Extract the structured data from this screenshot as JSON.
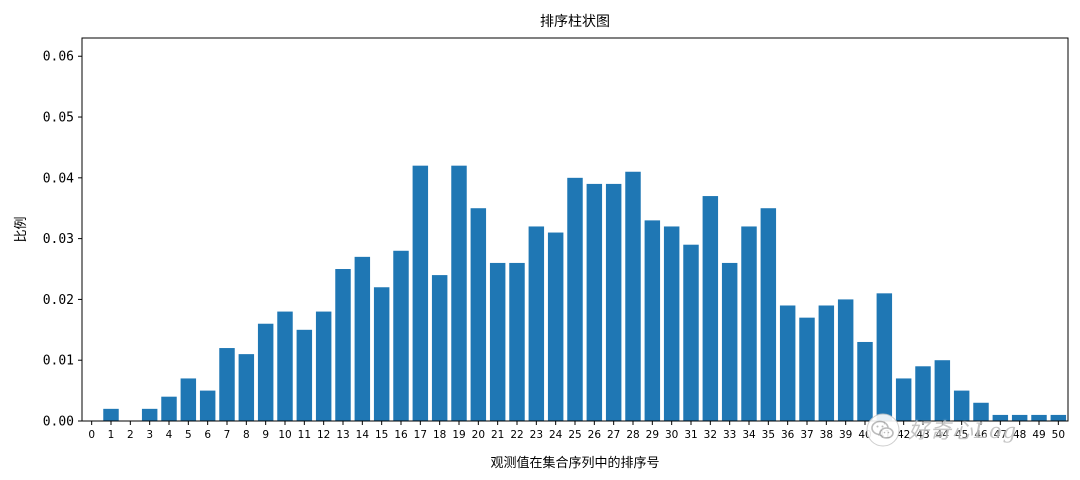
{
  "chart_data": {
    "type": "bar",
    "title": "排序柱状图",
    "xlabel": "观测值在集合序列中的排序号",
    "ylabel": "比例",
    "ylim": [
      0,
      0.063
    ],
    "xlim": [
      -0.5,
      50.5
    ],
    "yticks": [
      "0.00",
      "0.01",
      "0.02",
      "0.03",
      "0.04",
      "0.05",
      "0.06"
    ],
    "ytick_values": [
      0,
      0.01,
      0.02,
      0.03,
      0.04,
      0.05,
      0.06
    ],
    "categories": [
      "0",
      "1",
      "2",
      "3",
      "4",
      "5",
      "6",
      "7",
      "8",
      "9",
      "10",
      "11",
      "12",
      "13",
      "14",
      "15",
      "16",
      "17",
      "18",
      "19",
      "20",
      "21",
      "22",
      "23",
      "24",
      "25",
      "26",
      "27",
      "28",
      "29",
      "30",
      "31",
      "32",
      "33",
      "34",
      "35",
      "36",
      "37",
      "38",
      "39",
      "40",
      "41",
      "42",
      "43",
      "44",
      "45",
      "46",
      "47",
      "48",
      "49",
      "50"
    ],
    "values": [
      0,
      0.002,
      0,
      0.002,
      0.004,
      0.007,
      0.005,
      0.012,
      0.011,
      0.016,
      0.018,
      0.015,
      0.018,
      0.025,
      0.027,
      0.022,
      0.028,
      0.042,
      0.024,
      0.042,
      0.035,
      0.026,
      0.026,
      0.032,
      0.031,
      0.04,
      0.039,
      0.039,
      0.041,
      0.033,
      0.032,
      0.029,
      0.037,
      0.026,
      0.032,
      0.035,
      0.019,
      0.017,
      0.019,
      0.02,
      0.013,
      0.021,
      0.007,
      0.009,
      0.01,
      0.005,
      0.003,
      0.001,
      0.001,
      0.001,
      0.001
    ],
    "bar_color": "#1f77b4",
    "grid": false
  },
  "watermark": {
    "text": "好奇心Log",
    "icon": "wechat-icon"
  }
}
